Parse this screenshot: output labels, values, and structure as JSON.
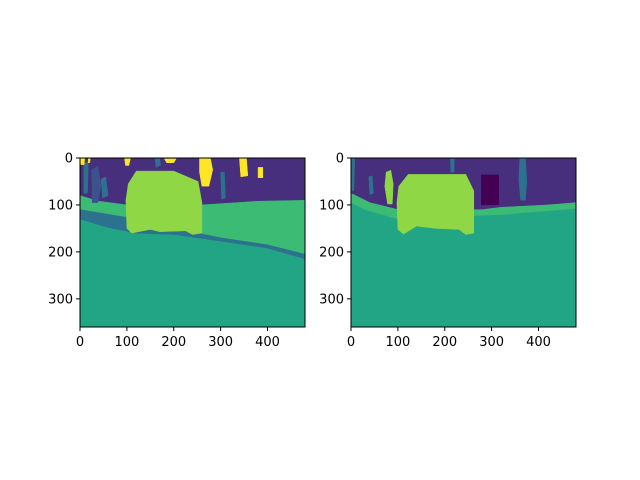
{
  "colors": {
    "c0": "#440154",
    "c1": "#472f7d",
    "c2": "#3b528b",
    "c3": "#2c728e",
    "c4": "#21a585",
    "c5": "#3cbb75",
    "c6": "#8fd744",
    "c7": "#fde725"
  },
  "chart_data": [
    {
      "type": "heatmap",
      "title": "",
      "xlabel": "",
      "ylabel": "",
      "xlim": [
        0,
        480
      ],
      "ylim": [
        360,
        0
      ],
      "x_ticks": [
        0,
        100,
        200,
        300,
        400
      ],
      "y_ticks": [
        0,
        100,
        200,
        300
      ],
      "regions": [
        {
          "color": "c4",
          "points": [
            [
              0,
              0
            ],
            [
              480,
              0
            ],
            [
              480,
              360
            ],
            [
              0,
              360
            ]
          ]
        },
        {
          "color": "c1",
          "points": [
            [
              0,
              0
            ],
            [
              480,
              0
            ],
            [
              480,
              90
            ],
            [
              380,
              92
            ],
            [
              260,
              100
            ],
            [
              200,
              100
            ],
            [
              100,
              100
            ],
            [
              40,
              92
            ],
            [
              0,
              80
            ]
          ]
        },
        {
          "color": "c5",
          "points": [
            [
              0,
              80
            ],
            [
              40,
              92
            ],
            [
              100,
              100
            ],
            [
              200,
              100
            ],
            [
              260,
              100
            ],
            [
              380,
              92
            ],
            [
              480,
              90
            ],
            [
              480,
              205
            ],
            [
              400,
              188
            ],
            [
              300,
              172
            ],
            [
              200,
              160
            ],
            [
              120,
              158
            ],
            [
              60,
              140
            ],
            [
              0,
              120
            ]
          ]
        },
        {
          "color": "c3",
          "points": [
            [
              0,
              110
            ],
            [
              60,
              120
            ],
            [
              120,
              130
            ],
            [
              200,
              150
            ],
            [
              300,
              170
            ],
            [
              400,
              185
            ],
            [
              480,
              205
            ],
            [
              480,
              215
            ],
            [
              400,
              192
            ],
            [
              300,
              177
            ],
            [
              200,
              163
            ],
            [
              120,
              160
            ],
            [
              60,
              148
            ],
            [
              0,
              130
            ]
          ]
        },
        {
          "color": "c3",
          "points": [
            [
              8,
              10
            ],
            [
              18,
              10
            ],
            [
              16,
              75
            ],
            [
              8,
              75
            ]
          ]
        },
        {
          "color": "c2",
          "points": [
            [
              25,
              25
            ],
            [
              38,
              18
            ],
            [
              45,
              60
            ],
            [
              38,
              95
            ],
            [
              26,
              95
            ]
          ]
        },
        {
          "color": "c3",
          "points": [
            [
              45,
              45
            ],
            [
              55,
              40
            ],
            [
              60,
              80
            ],
            [
              48,
              85
            ]
          ]
        },
        {
          "color": "c3",
          "points": [
            [
              160,
              0
            ],
            [
              170,
              0
            ],
            [
              172,
              15
            ],
            [
              162,
              20
            ]
          ]
        },
        {
          "color": "c3",
          "points": [
            [
              300,
              30
            ],
            [
              308,
              30
            ],
            [
              310,
              85
            ],
            [
              302,
              88
            ]
          ]
        },
        {
          "color": "c7",
          "points": [
            [
              0,
              0
            ],
            [
              10,
              0
            ],
            [
              9,
              14
            ],
            [
              2,
              14
            ]
          ]
        },
        {
          "color": "c7",
          "points": [
            [
              18,
              0
            ],
            [
              22,
              0
            ],
            [
              21,
              10
            ],
            [
              17,
              10
            ]
          ]
        },
        {
          "color": "c7",
          "points": [
            [
              95,
              0
            ],
            [
              108,
              0
            ],
            [
              104,
              16
            ],
            [
              97,
              16
            ]
          ]
        },
        {
          "color": "c7",
          "points": [
            [
              180,
              2
            ],
            [
              205,
              2
            ],
            [
              200,
              10
            ],
            [
              185,
              10
            ]
          ]
        },
        {
          "color": "c7",
          "points": [
            [
              255,
              0
            ],
            [
              278,
              0
            ],
            [
              283,
              25
            ],
            [
              275,
              60
            ],
            [
              260,
              60
            ],
            [
              255,
              30
            ]
          ]
        },
        {
          "color": "c7",
          "points": [
            [
              340,
              0
            ],
            [
              355,
              0
            ],
            [
              358,
              38
            ],
            [
              343,
              40
            ]
          ]
        },
        {
          "color": "c7",
          "points": [
            [
              380,
              20
            ],
            [
              390,
              20
            ],
            [
              390,
              42
            ],
            [
              380,
              42
            ]
          ]
        },
        {
          "color": "c6",
          "points": [
            [
              103,
              55
            ],
            [
              120,
              28
            ],
            [
              200,
              28
            ],
            [
              252,
              50
            ],
            [
              260,
              95
            ],
            [
              260,
              160
            ],
            [
              240,
              163
            ],
            [
              225,
              155
            ],
            [
              170,
              157
            ],
            [
              150,
              152
            ],
            [
              110,
              160
            ],
            [
              100,
              150
            ],
            [
              98,
              90
            ]
          ]
        }
      ]
    },
    {
      "type": "heatmap",
      "title": "",
      "xlabel": "",
      "ylabel": "",
      "xlim": [
        0,
        480
      ],
      "ylim": [
        360,
        0
      ],
      "x_ticks": [
        0,
        100,
        200,
        300,
        400
      ],
      "y_ticks": [
        0,
        100,
        200,
        300
      ],
      "regions": [
        {
          "color": "c4",
          "points": [
            [
              0,
              0
            ],
            [
              480,
              0
            ],
            [
              480,
              360
            ],
            [
              0,
              360
            ]
          ]
        },
        {
          "color": "c1",
          "points": [
            [
              0,
              0
            ],
            [
              480,
              0
            ],
            [
              480,
              95
            ],
            [
              420,
              100
            ],
            [
              320,
              105
            ],
            [
              280,
              110
            ],
            [
              100,
              110
            ],
            [
              40,
              95
            ],
            [
              0,
              75
            ]
          ]
        },
        {
          "color": "c5",
          "points": [
            [
              0,
              75
            ],
            [
              40,
              95
            ],
            [
              100,
              110
            ],
            [
              280,
              110
            ],
            [
              320,
              105
            ],
            [
              420,
              100
            ],
            [
              480,
              95
            ],
            [
              480,
              108
            ],
            [
              420,
              112
            ],
            [
              330,
              120
            ],
            [
              200,
              125
            ],
            [
              100,
              130
            ],
            [
              30,
              110
            ],
            [
              0,
              95
            ]
          ]
        },
        {
          "color": "c3",
          "points": [
            [
              0,
              0
            ],
            [
              8,
              0
            ],
            [
              6,
              70
            ],
            [
              0,
              70
            ]
          ]
        },
        {
          "color": "c3",
          "points": [
            [
              38,
              40
            ],
            [
              45,
              38
            ],
            [
              48,
              75
            ],
            [
              40,
              78
            ]
          ]
        },
        {
          "color": "c3",
          "points": [
            [
              212,
              2
            ],
            [
              220,
              2
            ],
            [
              220,
              30
            ],
            [
              213,
              30
            ]
          ]
        },
        {
          "color": "c3",
          "points": [
            [
              360,
              0
            ],
            [
              372,
              0
            ],
            [
              375,
              50
            ],
            [
              372,
              90
            ],
            [
              362,
              90
            ],
            [
              358,
              45
            ]
          ]
        },
        {
          "color": "c0",
          "points": [
            [
              278,
              36
            ],
            [
              315,
              36
            ],
            [
              315,
              100
            ],
            [
              278,
              100
            ]
          ]
        },
        {
          "color": "c6",
          "points": [
            [
              75,
              30
            ],
            [
              85,
              26
            ],
            [
              90,
              55
            ],
            [
              88,
              98
            ],
            [
              78,
              98
            ],
            [
              72,
              60
            ]
          ]
        },
        {
          "color": "c6",
          "points": [
            [
              102,
              60
            ],
            [
              122,
              35
            ],
            [
              245,
              35
            ],
            [
              262,
              70
            ],
            [
              262,
              160
            ],
            [
              245,
              163
            ],
            [
              230,
              152
            ],
            [
              180,
              150
            ],
            [
              140,
              145
            ],
            [
              112,
              162
            ],
            [
              100,
              152
            ],
            [
              98,
              95
            ]
          ]
        }
      ]
    }
  ]
}
